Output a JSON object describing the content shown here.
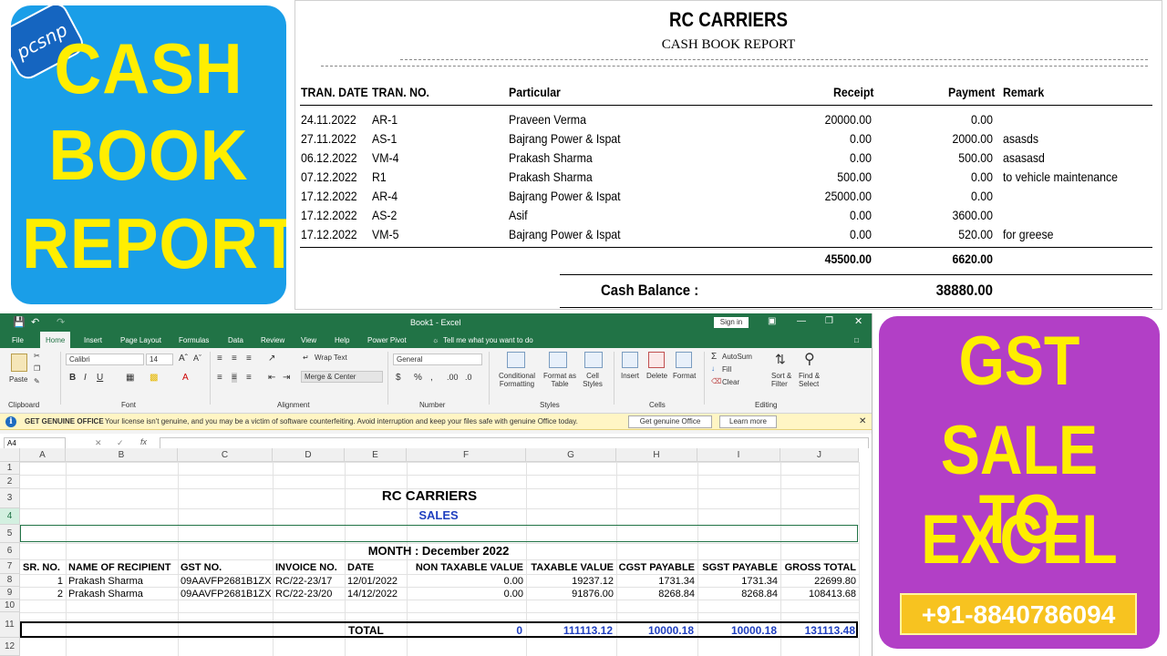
{
  "left_card": {
    "logo_text": "pcsnp",
    "lines": [
      "CASH",
      "BOOK",
      "REPORT"
    ]
  },
  "right_card": {
    "lines": [
      "GST",
      "SALE TO",
      "EXCEL"
    ],
    "phone": "+91-8840786094"
  },
  "report": {
    "company": "RC CARRIERS",
    "subtitle": "CASH BOOK REPORT",
    "headers": {
      "date": "TRAN. DATE",
      "no": "TRAN. NO.",
      "particular": "Particular",
      "receipt": "Receipt",
      "payment": "Payment",
      "remark": "Remark"
    },
    "rows": [
      {
        "date": "24.11.2022",
        "no": "AR-1",
        "particular": "Praveen Verma",
        "receipt": "20000.00",
        "payment": "0.00",
        "remark": ""
      },
      {
        "date": "27.11.2022",
        "no": "AS-1",
        "particular": "Bajrang Power & Ispat",
        "receipt": "0.00",
        "payment": "2000.00",
        "remark": "asasds"
      },
      {
        "date": "06.12.2022",
        "no": "VM-4",
        "particular": "Prakash Sharma",
        "receipt": "0.00",
        "payment": "500.00",
        "remark": "asasasd"
      },
      {
        "date": "07.12.2022",
        "no": "R1",
        "particular": "Prakash Sharma",
        "receipt": "500.00",
        "payment": "0.00",
        "remark": "to vehicle maintenance"
      },
      {
        "date": "17.12.2022",
        "no": "AR-4",
        "particular": "Bajrang Power & Ispat",
        "receipt": "25000.00",
        "payment": "0.00",
        "remark": ""
      },
      {
        "date": "17.12.2022",
        "no": "AS-2",
        "particular": "Asif",
        "receipt": "0.00",
        "payment": "3600.00",
        "remark": ""
      },
      {
        "date": "17.12.2022",
        "no": "VM-5",
        "particular": "Bajrang Power & Ispat",
        "receipt": "0.00",
        "payment": "520.00",
        "remark": "for greese"
      }
    ],
    "total_receipt": "45500.00",
    "total_payment": "6620.00",
    "balance_label": "Cash Balance :",
    "balance_value": "38880.00"
  },
  "excel": {
    "window_title": "Book1  -  Excel",
    "sign_in": "Sign in",
    "tabs": [
      "File",
      "Home",
      "Insert",
      "Page Layout",
      "Formulas",
      "Data",
      "Review",
      "View",
      "Help",
      "Power Pivot"
    ],
    "tell_me": "Tell me what you want to do",
    "ribbon": {
      "paste": "Paste",
      "clipboard": "Clipboard",
      "font_name": "Calibri",
      "font_size": "14",
      "font_group": "Font",
      "wrap_text": "Wrap Text",
      "merge_center": "Merge & Center",
      "alignment": "Alignment",
      "number_format": "General",
      "number_group": "Number",
      "conditional_formatting": "Conditional Formatting",
      "format_as_table": "Format as Table",
      "cell_styles": "Cell Styles",
      "styles_group": "Styles",
      "insert": "Insert",
      "delete": "Delete",
      "format": "Format",
      "cells_group": "Cells",
      "autosum": "AutoSum",
      "fill": "Fill",
      "clear": "Clear",
      "sort_filter": "Sort & Filter",
      "find_select": "Find & Select",
      "editing_group": "Editing"
    },
    "message": {
      "title": "GET GENUINE OFFICE",
      "text": "Your license isn't genuine, and you may be a victim of software counterfeiting. Avoid interruption and keep your files safe with genuine Office today.",
      "btn1": "Get genuine Office",
      "btn2": "Learn more"
    },
    "name_box": "A4",
    "fx": "fx",
    "columns": [
      "A",
      "B",
      "C",
      "D",
      "E",
      "F",
      "G",
      "H",
      "I",
      "J"
    ],
    "row_numbers": [
      "1",
      "2",
      "3",
      "4",
      "5",
      "6",
      "7",
      "8",
      "9",
      "10",
      "11",
      "12"
    ],
    "sheet": {
      "company": "RC CARRIERS",
      "title": "SALES",
      "month": "MONTH : December 2022",
      "headers": [
        "SR. NO.",
        "NAME OF RECIPIENT",
        "GST NO.",
        "INVOICE NO.",
        "DATE",
        "NON TAXABLE VALUE",
        "TAXABLE VALUE",
        "CGST PAYABLE",
        "SGST PAYABLE",
        "GROSS TOTAL"
      ],
      "rows": [
        [
          "1",
          "Prakash Sharma",
          "09AAVFP2681B1ZX",
          "RC/22-23/17",
          "12/01/2022",
          "0.00",
          "19237.12",
          "1731.34",
          "1731.34",
          "22699.80"
        ],
        [
          "2",
          "Prakash Sharma",
          "09AAVFP2681B1ZX",
          "RC/22-23/20",
          "14/12/2022",
          "0.00",
          "91876.00",
          "8268.84",
          "8268.84",
          "108413.68"
        ]
      ],
      "total_label": "TOTAL",
      "totals": [
        "0",
        "111113.12",
        "10000.18",
        "10000.18",
        "131113.48"
      ]
    }
  }
}
